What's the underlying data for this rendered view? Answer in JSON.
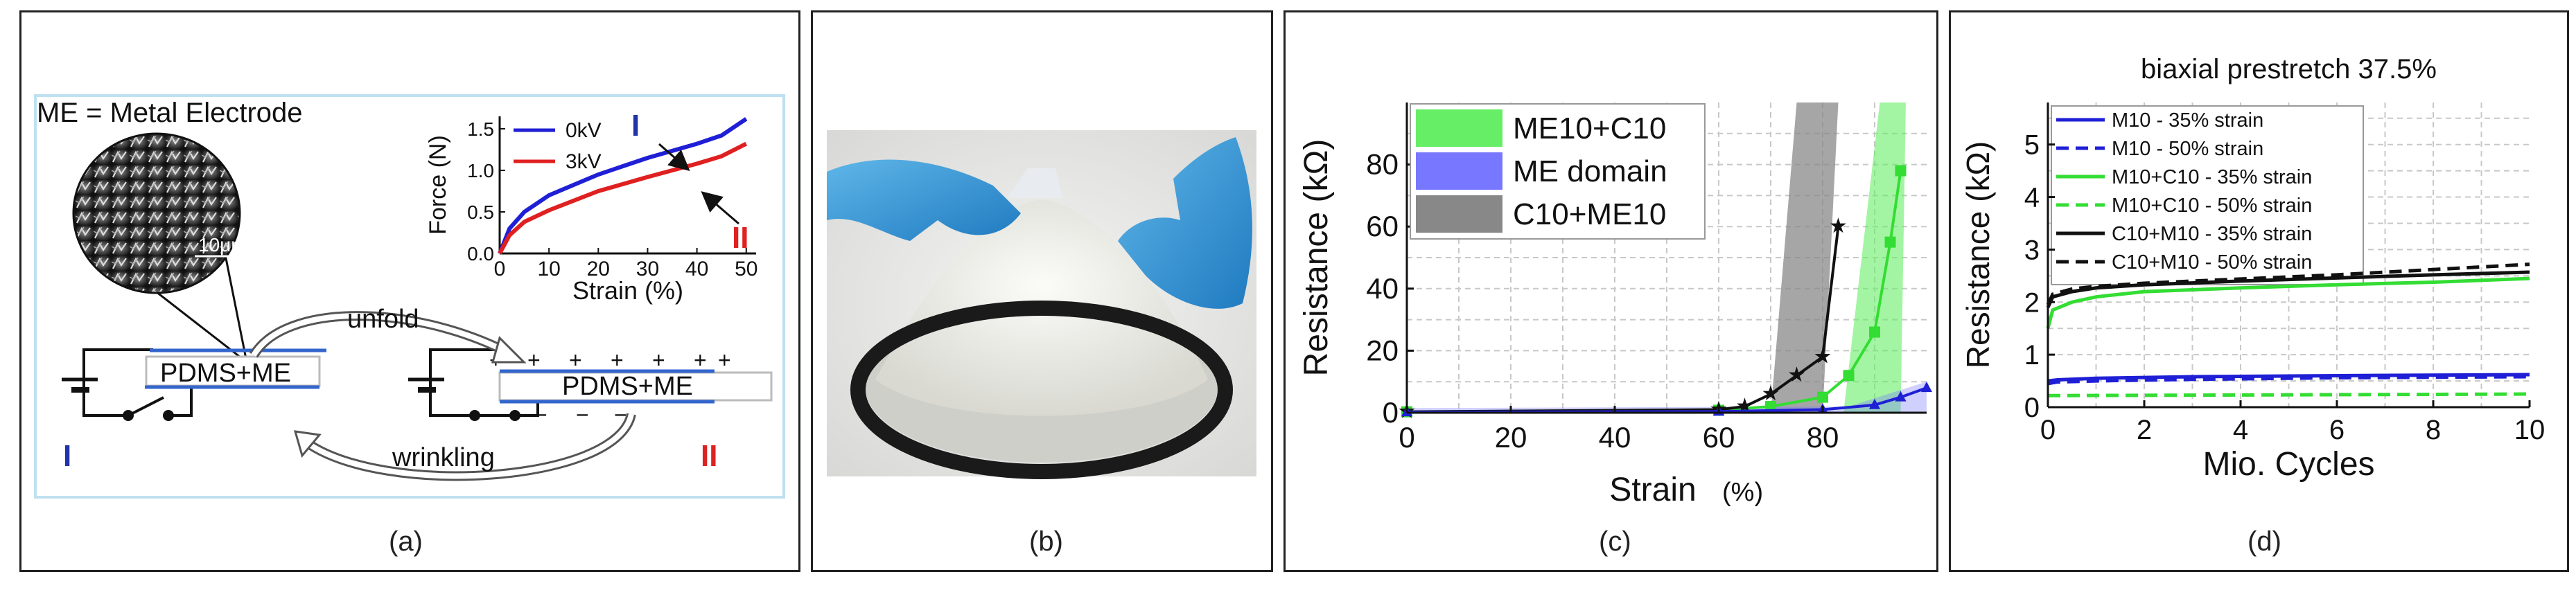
{
  "panels": {
    "a": {
      "letter": "(a)",
      "me_def": "ME = Metal Electrode",
      "scale_text": "10μm",
      "pdms_left": "PDMS+ME",
      "pdms_right": "PDMS+ME",
      "unfold": "unfold",
      "wrinkling": "wrinkling",
      "state_I": "I",
      "state_II": "II",
      "plus_sign": "+",
      "minus_sign": "−"
    },
    "b": {
      "letter": "(b)"
    },
    "c": {
      "letter": "(c)"
    },
    "d": {
      "letter": "(d)"
    }
  },
  "colors": {
    "blue": "#1f1fd6",
    "red": "#e02020",
    "green": "#33dd33",
    "black": "#111111",
    "me_domain": "#7777ff",
    "c10me10_fill": "#888888",
    "me10c10_fill": "#66ee66",
    "roman_blue": "#2233aa",
    "roman_red": "#dd2222"
  },
  "chart_data": [
    {
      "id": "force-inset",
      "type": "line",
      "xlabel": "Strain (%)",
      "ylabel": "Force (N)",
      "xlim": [
        0,
        52
      ],
      "ylim": [
        0,
        1.65
      ],
      "xticks": [
        "0",
        "10",
        "20",
        "30",
        "40",
        "50"
      ],
      "yticks": [
        "0.0",
        "0.5",
        "1.0",
        "1.5"
      ],
      "series": [
        {
          "name": "0kV",
          "color": "#1f1fd6",
          "x": [
            0,
            2,
            5,
            10,
            20,
            30,
            40,
            45,
            50
          ],
          "y": [
            0.0,
            0.3,
            0.5,
            0.7,
            0.95,
            1.15,
            1.32,
            1.42,
            1.62
          ]
        },
        {
          "name": "3kV",
          "color": "#e02020",
          "x": [
            0,
            2,
            5,
            10,
            20,
            30,
            40,
            45,
            50
          ],
          "y": [
            0.0,
            0.22,
            0.38,
            0.52,
            0.75,
            0.92,
            1.08,
            1.17,
            1.32
          ]
        }
      ],
      "annotations": [
        "I",
        "II"
      ]
    },
    {
      "id": "resistance-vs-strain",
      "type": "line",
      "xlabel": "Strain",
      "xlabel_unit": "(%)",
      "ylabel": "Resistance (kΩ)",
      "xlim": [
        0,
        100
      ],
      "ylim": [
        0,
        100
      ],
      "xticks": [
        "0",
        "20",
        "40",
        "60",
        "80"
      ],
      "yticks": [
        "0",
        "20",
        "40",
        "60",
        "80"
      ],
      "grid": true,
      "legend_position": "top-left",
      "legend": [
        "ME10+C10",
        "ME domain",
        "C10+ME10"
      ],
      "series": [
        {
          "name": "ME10+C10",
          "color": "#33dd33",
          "x": [
            0,
            60,
            70,
            80,
            85,
            90,
            93,
            95
          ],
          "y": [
            0.3,
            0.8,
            2,
            5,
            12,
            26,
            55,
            78
          ]
        },
        {
          "name": "C10+ME10",
          "color": "#111111",
          "x": [
            0,
            60,
            65,
            70,
            75,
            80,
            83
          ],
          "y": [
            0.3,
            1,
            2,
            6,
            12,
            18,
            60
          ]
        },
        {
          "name": "ME domain",
          "color": "#1f1fd6",
          "x": [
            0,
            60,
            80,
            90,
            95,
            100
          ],
          "y": [
            0.2,
            0.4,
            1,
            2.5,
            5,
            8
          ]
        }
      ]
    },
    {
      "id": "resistance-vs-cycles",
      "type": "line",
      "title": "biaxial prestretch 37.5%",
      "xlabel": "Mio. Cycles",
      "ylabel": "Resistance (kΩ)",
      "xlim": [
        0,
        10
      ],
      "ylim": [
        0,
        5.8
      ],
      "xticks": [
        "0",
        "2",
        "4",
        "6",
        "8",
        "10"
      ],
      "yticks": [
        "0",
        "1",
        "2",
        "3",
        "4",
        "5"
      ],
      "grid": true,
      "legend_position": "top-left",
      "series": [
        {
          "name": "M10 - 35% strain",
          "color": "#1f1fd6",
          "dash": false,
          "x": [
            0,
            0.2,
            1,
            3,
            6,
            10
          ],
          "y": [
            0.5,
            0.52,
            0.55,
            0.58,
            0.6,
            0.62
          ]
        },
        {
          "name": "M10 - 50%  strain",
          "color": "#1f1fd6",
          "dash": true,
          "x": [
            0,
            0.2,
            1,
            3,
            6,
            10
          ],
          "y": [
            0.45,
            0.48,
            0.5,
            0.53,
            0.56,
            0.58
          ]
        },
        {
          "name": "M10+C10 - 35% strain",
          "color": "#33dd33",
          "dash": false,
          "x": [
            0,
            0.1,
            0.5,
            1,
            2,
            4,
            6,
            8,
            10
          ],
          "y": [
            1.5,
            1.85,
            2.0,
            2.1,
            2.2,
            2.27,
            2.33,
            2.38,
            2.45
          ]
        },
        {
          "name": "M10+C10 - 50% strain",
          "color": "#33dd33",
          "dash": true,
          "x": [
            0,
            10
          ],
          "y": [
            0.22,
            0.25
          ]
        },
        {
          "name": "C10+M10 - 35% strain",
          "color": "#111111",
          "dash": false,
          "x": [
            0,
            0.1,
            0.5,
            1,
            2,
            4,
            6,
            8,
            10
          ],
          "y": [
            1.9,
            2.1,
            2.2,
            2.27,
            2.33,
            2.4,
            2.46,
            2.52,
            2.57
          ]
        },
        {
          "name": "C10+M10 - 50% strain",
          "color": "#111111",
          "dash": true,
          "x": [
            0,
            0.1,
            0.5,
            1,
            2,
            4,
            6,
            8,
            10
          ],
          "y": [
            1.95,
            2.15,
            2.25,
            2.3,
            2.36,
            2.44,
            2.52,
            2.62,
            2.72
          ]
        }
      ]
    }
  ]
}
